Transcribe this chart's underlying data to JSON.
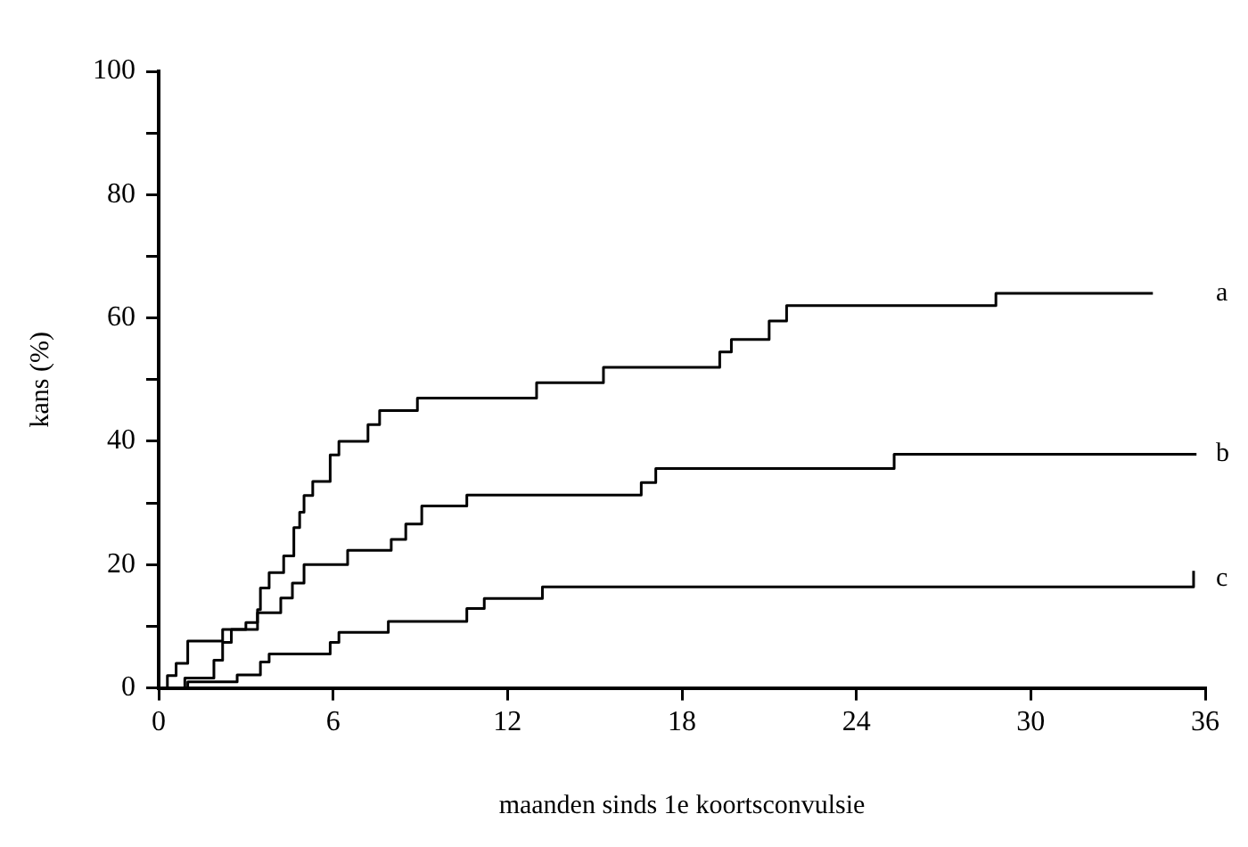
{
  "chart_data": {
    "type": "step",
    "xlabel": "maanden sinds 1e koortsconvulsie",
    "ylabel": "kans (%)",
    "xlim": [
      0,
      36
    ],
    "xticks": [
      0,
      6,
      12,
      18,
      24,
      30,
      36
    ],
    "ylim": [
      0,
      100
    ],
    "yticks": [
      0,
      {
        "value": 10,
        "label": null
      },
      20,
      {
        "value": 30,
        "label": null
      },
      40,
      {
        "value": 50,
        "label": null
      },
      60,
      {
        "value": 70,
        "label": null
      },
      80,
      {
        "value": 90,
        "label": null
      },
      100
    ],
    "grid": false,
    "legend": false,
    "marker": "none",
    "line_style": "solid",
    "series": [
      {
        "name": "a",
        "color": "#000000",
        "x": [
          0,
          0.3,
          0.6,
          1.0,
          2.2,
          3.0,
          3.4,
          3.5,
          3.8,
          4.3,
          4.65,
          4.85,
          5.0,
          5.3,
          5.9,
          6.2,
          7.2,
          7.6,
          8.9,
          13.0,
          15.3,
          19.3,
          19.7,
          21.0,
          21.6,
          28.8,
          34.2
        ],
        "values": [
          0,
          2,
          4,
          7.6,
          9.5,
          10.6,
          12.7,
          16.2,
          18.7,
          21.4,
          26,
          28.5,
          31.2,
          33.5,
          37.8,
          40,
          42.7,
          45,
          47,
          49.5,
          52,
          54.5,
          56.5,
          59.5,
          62,
          64,
          64
        ]
      },
      {
        "name": "b",
        "color": "#000000",
        "x": [
          0,
          0.9,
          1.9,
          2.2,
          2.5,
          3.4,
          4.2,
          4.6,
          5.0,
          6.5,
          8.0,
          8.5,
          9.05,
          10.6,
          16.6,
          17.1,
          25.3,
          35.7
        ],
        "values": [
          0,
          1.6,
          4.5,
          7.4,
          9.5,
          12.2,
          14.6,
          17,
          20,
          22.3,
          24.1,
          26.6,
          29.5,
          31.3,
          33.3,
          35.6,
          37.9,
          37.9
        ]
      },
      {
        "name": "c",
        "color": "#000000",
        "x": [
          0,
          1.0,
          2.7,
          3.5,
          3.8,
          5.9,
          6.2,
          7.9,
          10.6,
          11.2,
          13.2,
          35.5,
          35.6
        ],
        "values": [
          0,
          1.0,
          2.1,
          4.2,
          5.5,
          7.4,
          9.0,
          10.8,
          12.9,
          14.5,
          16.4,
          16.4,
          19
        ]
      }
    ]
  }
}
